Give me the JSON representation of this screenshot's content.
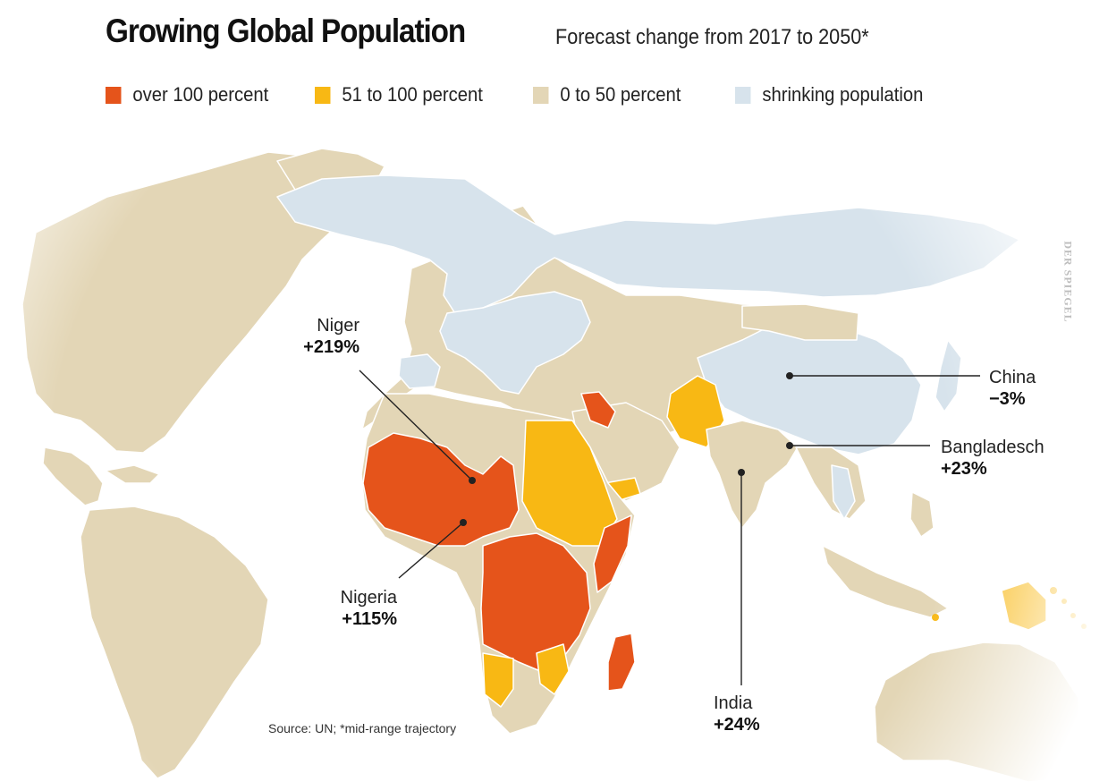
{
  "title": "Growing Global Population",
  "subtitle": "Forecast change from 2017 to 2050*",
  "colors": {
    "over_100": "#e5541b",
    "51_to_100": "#f8b814",
    "0_to_50": "#e3d6b6",
    "shrinking": "#d7e3ec",
    "land_border": "#ffffff"
  },
  "legend": [
    {
      "label": "over 100 percent",
      "color": "#e5541b"
    },
    {
      "label": "51 to 100 percent",
      "color": "#f8b814"
    },
    {
      "label": "0 to 50 percent",
      "color": "#e3d6b6"
    },
    {
      "label": "shrinking population",
      "color": "#d7e3ec"
    }
  ],
  "callouts": {
    "niger": {
      "name": "Niger",
      "value": "+219%"
    },
    "nigeria": {
      "name": "Nigeria",
      "value": "+115%"
    },
    "china": {
      "name": "China",
      "value": "−3%"
    },
    "bangladesch": {
      "name": "Bangladesch",
      "value": "+23%"
    },
    "india": {
      "name": "India",
      "value": "+24%"
    }
  },
  "source": "Source: UN; *mid-range trajectory",
  "credit": "DER SPIEGEL"
}
